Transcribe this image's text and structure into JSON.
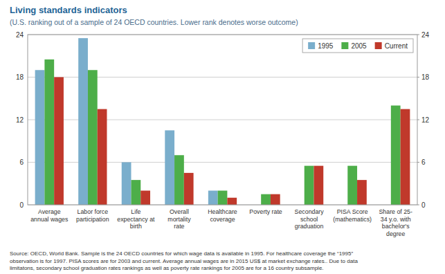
{
  "chart_data": {
    "type": "bar",
    "title": "Living standards indicators",
    "subtitle": "(U.S. ranking out of a sample of 24 OECD countries. Lower rank denotes worse outcome)",
    "footnote": "Source: OECD, World Bank. Sample is the 24 OECD countries for which wage data is available in 1995. For healthcare coverage the “1995”\nobservation is for 1997. PISA scores are for 2003 and current. Average annual wages are in 2015 US$ at market exchange rates.. Due to data\nlimitatons, secondary school graduation rates rankings as well as poverty rate rankings for 2005 are for a 16 country subsample.",
    "categories": [
      "Average\nannual wages",
      "Labor force\nparticipation",
      "Life\nexpectancy at\nbirth",
      "Overall\nmortality\nrate",
      "Healthcare\ncoverage",
      "Poverty rate",
      "Secondary\nschool\ngraduation",
      "PISA Score\n(mathematics)",
      "Share of 25-\n34 y.o. with\nbachelor's\ndegree"
    ],
    "series": [
      {
        "name": "1995",
        "color": "#7aaecc",
        "values": [
          19.0,
          23.5,
          6.0,
          10.5,
          2.0,
          null,
          null,
          null,
          null
        ]
      },
      {
        "name": "2005",
        "color": "#4dae49",
        "values": [
          20.5,
          19.0,
          3.5,
          7.0,
          2.0,
          1.5,
          5.5,
          5.5,
          14.0
        ]
      },
      {
        "name": "Current",
        "color": "#c0392b",
        "values": [
          18.0,
          13.5,
          2.0,
          4.5,
          1.0,
          1.5,
          5.5,
          3.5,
          13.5
        ]
      }
    ],
    "ylim": [
      0,
      24
    ],
    "yticks": [
      0,
      6,
      12,
      18,
      24
    ],
    "y2lim": [
      0,
      24
    ],
    "y2ticks": [
      0,
      6,
      12,
      18,
      24
    ],
    "grid": true,
    "legend": "upper right"
  }
}
